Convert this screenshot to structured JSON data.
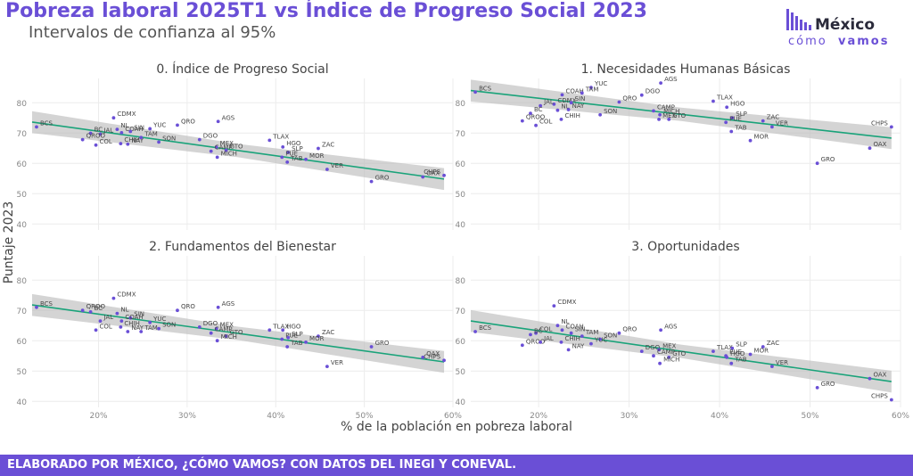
{
  "title": "Pobreza laboral 2025T1 vs Índice de Progreso Social 2023",
  "subtitle": "Intervalos de confianza al 95%",
  "logo": {
    "line1": "México",
    "line2a": "cómo",
    "line2b": "vamos"
  },
  "footer": "ELABORADO POR MÉXICO, ¿CÓMO VAMOS? CON DATOS DEL INEGI Y CONEVAL.",
  "colors": {
    "accent": "#6a4fd6",
    "point": "#6a4fd6",
    "trend": "#1aa37a",
    "band": "#bdbdbd"
  },
  "chart_data": {
    "type": "scatter",
    "xlabel": "% de la población en pobreza laboral",
    "ylabel": "Puntaje 2023",
    "xlim": [
      12.5,
      60
    ],
    "xticks": [
      20,
      30,
      40,
      50,
      60
    ],
    "xtick_labels": [
      "20%",
      "30%",
      "40%",
      "50%",
      "60%"
    ],
    "grid": true,
    "panels": [
      {
        "name": "0. Índice de Progreso Social",
        "ylim": [
          38,
          88
        ],
        "yticks": [
          40,
          50,
          60,
          70,
          80
        ],
        "trend": {
          "x0": 12.5,
          "y0": 73.6,
          "x1": 59,
          "y1": 54.8
        },
        "points": [
          {
            "label": "BCS",
            "x": 13.0,
            "y": 72.0
          },
          {
            "label": "CDMX",
            "x": 21.7,
            "y": 75.0
          },
          {
            "label": "BC",
            "x": 19.1,
            "y": 69.9
          },
          {
            "label": "NL",
            "x": 22.1,
            "y": 71.2
          },
          {
            "label": "JAL",
            "x": 20.2,
            "y": 69.6
          },
          {
            "label": "COAH",
            "x": 22.6,
            "y": 70.1
          },
          {
            "label": "SIN",
            "x": 23.6,
            "y": 70.5
          },
          {
            "label": "YUC",
            "x": 25.8,
            "y": 71.4
          },
          {
            "label": "QRO",
            "x": 28.9,
            "y": 72.6
          },
          {
            "label": "AGS",
            "x": 33.5,
            "y": 73.8
          },
          {
            "label": "QROO",
            "x": 18.2,
            "y": 67.8
          },
          {
            "label": "COL",
            "x": 19.7,
            "y": 66.0
          },
          {
            "label": "CHIH",
            "x": 22.5,
            "y": 66.5
          },
          {
            "label": "NAY",
            "x": 23.3,
            "y": 66.3
          },
          {
            "label": "TAM",
            "x": 24.8,
            "y": 68.5
          },
          {
            "label": "SON",
            "x": 26.8,
            "y": 67.0
          },
          {
            "label": "DGO",
            "x": 31.4,
            "y": 67.8
          },
          {
            "label": "MEX",
            "x": 33.3,
            "y": 65.3
          },
          {
            "label": "CAMP",
            "x": 32.7,
            "y": 64.0
          },
          {
            "label": "GTO",
            "x": 34.4,
            "y": 64.3
          },
          {
            "label": "MICH",
            "x": 33.4,
            "y": 62.0
          },
          {
            "label": "TLAX",
            "x": 39.3,
            "y": 67.6
          },
          {
            "label": "HGO",
            "x": 40.8,
            "y": 65.4
          },
          {
            "label": "SLP",
            "x": 41.4,
            "y": 63.6
          },
          {
            "label": "PUE",
            "x": 40.7,
            "y": 62.0
          },
          {
            "label": "ZAC",
            "x": 44.8,
            "y": 64.9
          },
          {
            "label": "MOR",
            "x": 43.4,
            "y": 61.3
          },
          {
            "label": "TAB",
            "x": 41.3,
            "y": 60.4
          },
          {
            "label": "VER",
            "x": 45.8,
            "y": 58.0
          },
          {
            "label": "GRO",
            "x": 50.8,
            "y": 54.0
          },
          {
            "label": "OAX",
            "x": 56.6,
            "y": 55.5
          },
          {
            "label": "CHPS",
            "x": 59.0,
            "y": 56.0
          }
        ]
      },
      {
        "name": "1. Necesidades Humanas Básicas",
        "ylim": [
          38,
          88
        ],
        "yticks": [
          40,
          50,
          60,
          70,
          80
        ],
        "trend": {
          "x0": 12.5,
          "y0": 84.0,
          "x1": 59,
          "y1": 68.3
        },
        "points": [
          {
            "label": "BCS",
            "x": 13.0,
            "y": 83.5
          },
          {
            "label": "AGS",
            "x": 33.5,
            "y": 86.5
          },
          {
            "label": "YUC",
            "x": 25.8,
            "y": 85.0
          },
          {
            "label": "COAH",
            "x": 22.6,
            "y": 82.6
          },
          {
            "label": "TAM",
            "x": 24.8,
            "y": 83.2
          },
          {
            "label": "DGO",
            "x": 31.4,
            "y": 82.5
          },
          {
            "label": "CDMX",
            "x": 21.7,
            "y": 79.5
          },
          {
            "label": "JAL",
            "x": 20.2,
            "y": 79.0
          },
          {
            "label": "SIN",
            "x": 23.6,
            "y": 80.0
          },
          {
            "label": "QRO",
            "x": 28.9,
            "y": 80.2
          },
          {
            "label": "NL",
            "x": 22.1,
            "y": 77.5
          },
          {
            "label": "NAY",
            "x": 23.3,
            "y": 77.7
          },
          {
            "label": "BC",
            "x": 19.1,
            "y": 76.5
          },
          {
            "label": "QROO",
            "x": 18.2,
            "y": 74.0
          },
          {
            "label": "SON",
            "x": 26.8,
            "y": 76.0
          },
          {
            "label": "CAMP",
            "x": 32.7,
            "y": 77.3
          },
          {
            "label": "TLAX",
            "x": 39.3,
            "y": 80.5
          },
          {
            "label": "HGO",
            "x": 40.8,
            "y": 78.5
          },
          {
            "label": "COL",
            "x": 19.7,
            "y": 72.5
          },
          {
            "label": "CHIH",
            "x": 22.5,
            "y": 74.5
          },
          {
            "label": "MICH",
            "x": 33.4,
            "y": 76.0
          },
          {
            "label": "MEX",
            "x": 33.3,
            "y": 74.5
          },
          {
            "label": "GTO",
            "x": 34.4,
            "y": 74.5
          },
          {
            "label": "SLP",
            "x": 41.4,
            "y": 75.0
          },
          {
            "label": "PUE",
            "x": 40.7,
            "y": 73.5
          },
          {
            "label": "ZAC",
            "x": 44.8,
            "y": 74.0
          },
          {
            "label": "VER",
            "x": 45.8,
            "y": 72.0
          },
          {
            "label": "TAB",
            "x": 41.3,
            "y": 70.5
          },
          {
            "label": "MOR",
            "x": 43.4,
            "y": 67.5
          },
          {
            "label": "GRO",
            "x": 50.8,
            "y": 60.0
          },
          {
            "label": "CHPS",
            "x": 59.0,
            "y": 72.0
          },
          {
            "label": "OAX",
            "x": 56.6,
            "y": 65.0
          }
        ]
      },
      {
        "name": "2. Fundamentos del Bienestar",
        "ylim": [
          38,
          88
        ],
        "yticks": [
          40,
          50,
          60,
          70,
          80
        ],
        "trend": {
          "x0": 12.5,
          "y0": 71.8,
          "x1": 59,
          "y1": 53.0
        },
        "points": [
          {
            "label": "BCS",
            "x": 13.0,
            "y": 71.0
          },
          {
            "label": "CDMX",
            "x": 21.7,
            "y": 74.0
          },
          {
            "label": "QROO",
            "x": 18.2,
            "y": 70.0
          },
          {
            "label": "BC",
            "x": 19.1,
            "y": 69.5
          },
          {
            "label": "NL",
            "x": 22.1,
            "y": 69.0
          },
          {
            "label": "SIN",
            "x": 23.6,
            "y": 67.5
          },
          {
            "label": "QRO",
            "x": 28.9,
            "y": 70.0
          },
          {
            "label": "AGS",
            "x": 33.5,
            "y": 71.0
          },
          {
            "label": "JAL",
            "x": 20.2,
            "y": 66.5
          },
          {
            "label": "COAH",
            "x": 22.6,
            "y": 66.5
          },
          {
            "label": "YUC",
            "x": 25.8,
            "y": 66.0
          },
          {
            "label": "CHIH",
            "x": 22.5,
            "y": 64.5
          },
          {
            "label": "SON",
            "x": 26.8,
            "y": 64.0
          },
          {
            "label": "COL",
            "x": 19.7,
            "y": 63.5
          },
          {
            "label": "NAY",
            "x": 23.3,
            "y": 63.0
          },
          {
            "label": "TAM",
            "x": 24.8,
            "y": 63.0
          },
          {
            "label": "DGO",
            "x": 31.4,
            "y": 64.5
          },
          {
            "label": "MEX",
            "x": 33.3,
            "y": 64.0
          },
          {
            "label": "CAMP",
            "x": 32.7,
            "y": 62.5
          },
          {
            "label": "GTO",
            "x": 34.4,
            "y": 61.5
          },
          {
            "label": "MICH",
            "x": 33.4,
            "y": 60.0
          },
          {
            "label": "TLAX",
            "x": 39.3,
            "y": 63.5
          },
          {
            "label": "HGO",
            "x": 40.8,
            "y": 63.5
          },
          {
            "label": "ZAC",
            "x": 44.8,
            "y": 61.5
          },
          {
            "label": "SLP",
            "x": 41.4,
            "y": 61.0
          },
          {
            "label": "PUE",
            "x": 40.7,
            "y": 60.5
          },
          {
            "label": "MOR",
            "x": 43.4,
            "y": 59.5
          },
          {
            "label": "TAB",
            "x": 41.3,
            "y": 58.0
          },
          {
            "label": "GRO",
            "x": 50.8,
            "y": 58.0
          },
          {
            "label": "VER",
            "x": 45.8,
            "y": 51.5
          },
          {
            "label": "OAX",
            "x": 56.6,
            "y": 54.5
          },
          {
            "label": "CHPS",
            "x": 59.0,
            "y": 53.5
          }
        ]
      },
      {
        "name": "3. Oportunidades",
        "ylim": [
          38,
          88
        ],
        "yticks": [
          40,
          50,
          60,
          70,
          80
        ],
        "trend": {
          "x0": 12.5,
          "y0": 66.5,
          "x1": 59,
          "y1": 46.5
        },
        "points": [
          {
            "label": "BCS",
            "x": 13.0,
            "y": 63.0
          },
          {
            "label": "CDMX",
            "x": 21.7,
            "y": 71.5
          },
          {
            "label": "NL",
            "x": 22.1,
            "y": 65.0
          },
          {
            "label": "COL",
            "x": 19.7,
            "y": 62.5
          },
          {
            "label": "BC",
            "x": 19.1,
            "y": 62.0
          },
          {
            "label": "COAH",
            "x": 22.6,
            "y": 63.5
          },
          {
            "label": "SIN",
            "x": 23.6,
            "y": 62.5
          },
          {
            "label": "TAM",
            "x": 24.8,
            "y": 61.5
          },
          {
            "label": "QRO",
            "x": 28.9,
            "y": 62.5
          },
          {
            "label": "AGS",
            "x": 33.5,
            "y": 63.5
          },
          {
            "label": "SON",
            "x": 26.8,
            "y": 60.5
          },
          {
            "label": "QROO",
            "x": 18.2,
            "y": 58.5
          },
          {
            "label": "JAL",
            "x": 20.2,
            "y": 59.5
          },
          {
            "label": "CHIH",
            "x": 22.5,
            "y": 59.5
          },
          {
            "label": "YUC",
            "x": 25.8,
            "y": 59.0
          },
          {
            "label": "NAY",
            "x": 23.3,
            "y": 57.0
          },
          {
            "label": "DGO",
            "x": 31.4,
            "y": 56.5
          },
          {
            "label": "MEX",
            "x": 33.3,
            "y": 57.0
          },
          {
            "label": "CAMP",
            "x": 32.7,
            "y": 55.0
          },
          {
            "label": "GTO",
            "x": 34.4,
            "y": 54.5
          },
          {
            "label": "MICH",
            "x": 33.4,
            "y": 52.5
          },
          {
            "label": "TLAX",
            "x": 39.3,
            "y": 56.5
          },
          {
            "label": "SLP",
            "x": 41.4,
            "y": 57.5
          },
          {
            "label": "PUE",
            "x": 40.7,
            "y": 55.0
          },
          {
            "label": "HGO",
            "x": 40.8,
            "y": 54.5
          },
          {
            "label": "ZAC",
            "x": 44.8,
            "y": 58.0
          },
          {
            "label": "MOR",
            "x": 43.4,
            "y": 55.5
          },
          {
            "label": "TAB",
            "x": 41.3,
            "y": 52.5
          },
          {
            "label": "VER",
            "x": 45.8,
            "y": 51.5
          },
          {
            "label": "GRO",
            "x": 50.8,
            "y": 44.5
          },
          {
            "label": "OAX",
            "x": 56.6,
            "y": 47.5
          },
          {
            "label": "CHPS",
            "x": 59.0,
            "y": 40.5
          }
        ]
      }
    ]
  }
}
